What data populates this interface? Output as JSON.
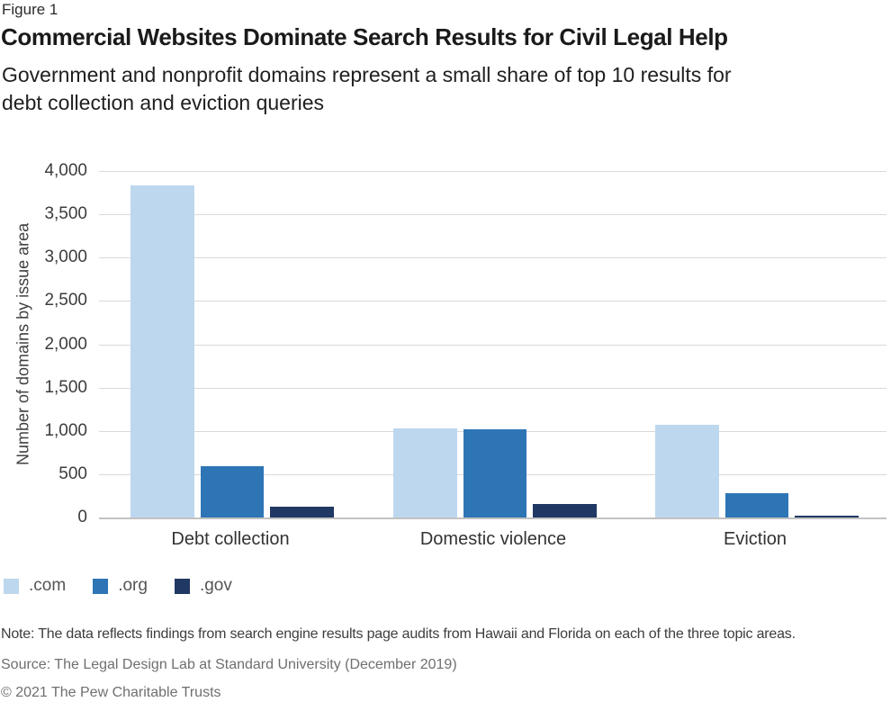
{
  "header": {
    "figure_label": "Figure 1",
    "title": "Commercial Websites Dominate Search Results for Civil Legal Help",
    "subtitle_line1": "Government and nonprofit domains represent a small share of top 10 results for",
    "subtitle_line2": "debt collection and eviction queries"
  },
  "chart_data": {
    "type": "bar",
    "title": "Commercial Websites Dominate Search Results for Civil Legal Help",
    "ylabel": "Number of domains by issue area",
    "xlabel": "",
    "ylim": [
      0,
      4000
    ],
    "ytick_interval": 500,
    "ytick_labels": [
      "4,000",
      "3,500",
      "3,000",
      "2,500",
      "2,000",
      "1,500",
      "1,000",
      "500",
      "0"
    ],
    "grid": "horizontal",
    "legend_position": "bottom-left",
    "categories": [
      "Debt collection",
      "Domestic violence",
      "Eviction"
    ],
    "series": [
      {
        "name": ".com",
        "color": "#BDD7EE",
        "values": [
          3830,
          1030,
          1070
        ]
      },
      {
        "name": ".org",
        "color": "#2E75B6",
        "values": [
          590,
          1015,
          280
        ]
      },
      {
        "name": ".gov",
        "color": "#1F3864",
        "values": [
          130,
          160,
          25
        ]
      }
    ]
  },
  "footer": {
    "note": "Note: The data reflects findings from search engine results page audits from Hawaii and Florida on each of the three topic areas.",
    "source": "Source: The Legal Design Lab at Standard University (December 2019)",
    "copyright": "© 2021 The Pew Charitable Trusts"
  }
}
